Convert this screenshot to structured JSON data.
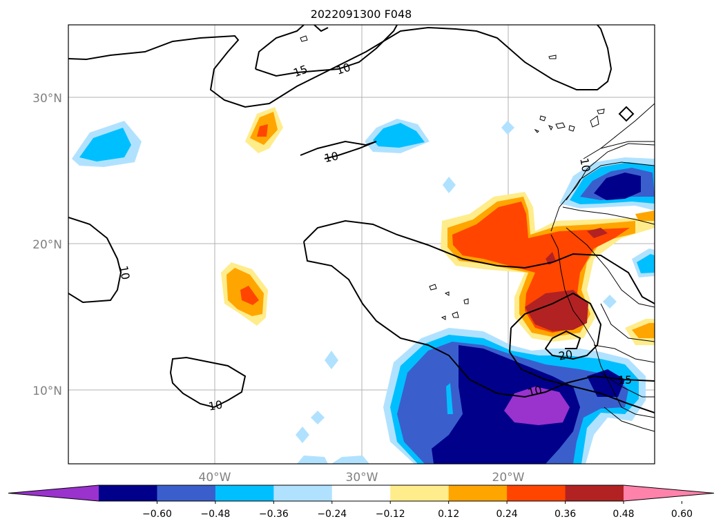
{
  "title": "2022091300 F048",
  "lat_labels": [
    "30°N",
    "20°N",
    "10°N"
  ],
  "lon_labels": [
    "40°W",
    "30°W",
    "20°W"
  ],
  "contour_labels": [
    "15",
    "10",
    "10",
    "10",
    "10",
    "10",
    "15",
    "20",
    "10"
  ],
  "colorbar": {
    "colors": [
      "#9a32cd",
      "#00008b",
      "#3a5fcd",
      "#00bfff",
      "#b0e2ff",
      "#ffffff",
      "#ffec8b",
      "#ffa500",
      "#ff4500",
      "#b22222",
      "#ff82ab"
    ],
    "tick_labels": [
      "−0.60",
      "−0.48",
      "−0.36",
      "−0.24",
      "−0.12",
      "0.12",
      "0.24",
      "0.36",
      "0.48",
      "0.60"
    ]
  }
}
